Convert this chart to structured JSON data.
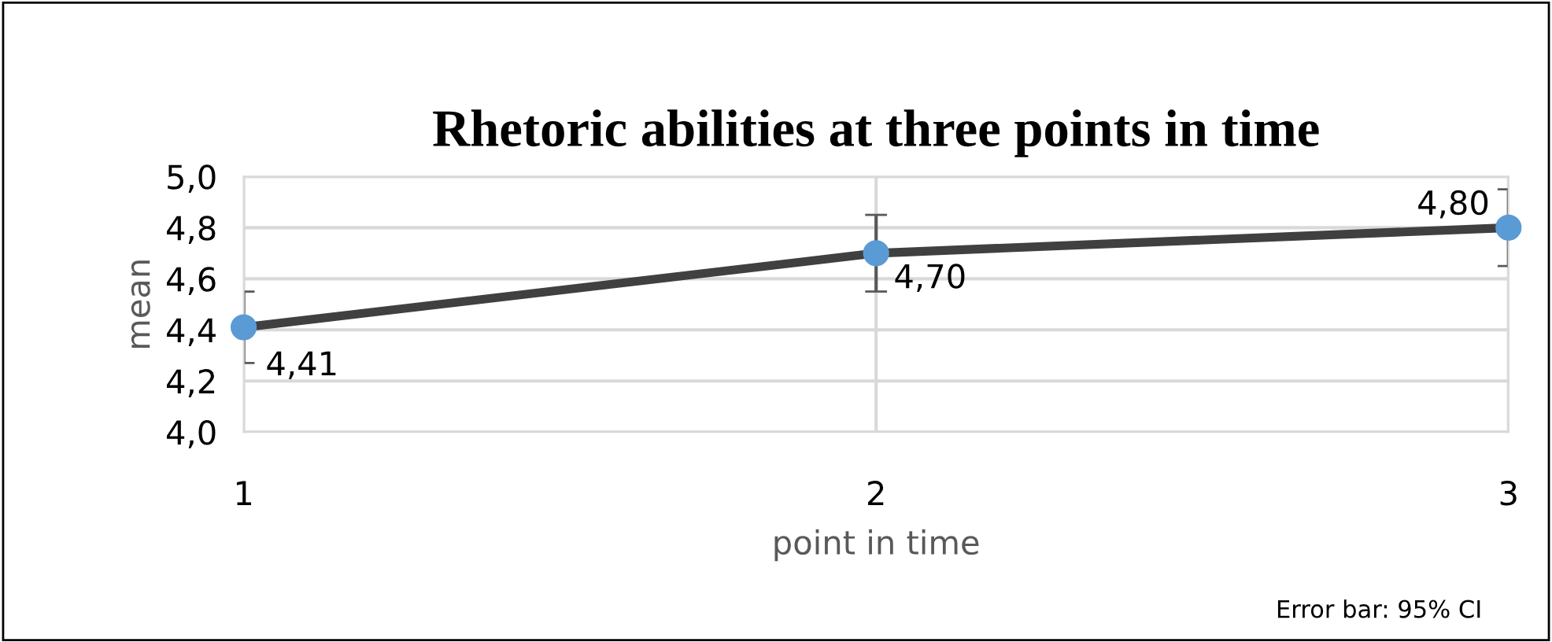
{
  "chart_data": {
    "type": "line",
    "title": "Rhetoric abilities at three points in time",
    "xlabel": "point in time",
    "ylabel": "mean",
    "x": [
      1,
      2,
      3
    ],
    "series": [
      {
        "color": "#404040",
        "colors": [
          "#5b9bd5",
          "#5b9bd5",
          "#5b9bd5"
        ],
        "values": [
          4.41,
          4.7,
          4.8
        ],
        "errors": [
          0.14,
          0.15,
          0.15
        ],
        "value_labels": [
          "4,41",
          "4,70",
          "4,80"
        ]
      }
    ],
    "xlim": [
      1,
      3
    ],
    "xticks": [
      1,
      2,
      3
    ],
    "ylim": [
      4.0,
      5.0
    ],
    "yticks": [
      {
        "value": 4.0,
        "label": "4,0"
      },
      {
        "value": 4.2,
        "label": "4,2"
      },
      {
        "value": 4.4,
        "label": "4,4"
      },
      {
        "value": 4.6,
        "label": "4,6"
      },
      {
        "value": 4.8,
        "label": "4,8"
      },
      {
        "value": 5.0,
        "label": "5,0"
      }
    ],
    "grid": true,
    "marker": "circle",
    "line_style": "solid",
    "annotations": [
      "Error bar: 95% CI"
    ]
  }
}
